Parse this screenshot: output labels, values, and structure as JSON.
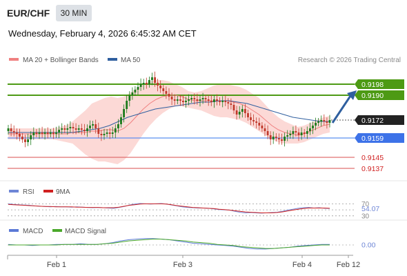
{
  "header": {
    "pair": "EUR/CHF",
    "timeframe": "30 MIN",
    "datetime": "Wednesday, February 4, 2026 6:45:32 AM CET"
  },
  "legend": {
    "ma20_label": "MA 20 + Bollinger Bands",
    "ma50_label": "MA 50",
    "ma20_color": "#f08080",
    "ma50_color": "#2f5f9f",
    "copyright": "Research © 2026 Trading Central"
  },
  "colors": {
    "up_candle": "#1a7a1a",
    "down_candle": "#c0392b",
    "bollinger_fill": "#fcd9d6",
    "resistance_line": "#4d9a14",
    "pivot_line": "#5b8ff0",
    "support_line": "#e07070",
    "arrow": "#2f5f9f",
    "rsi_line": "#6e86d6",
    "rsi_ma_line": "#d02020",
    "macd_line": "#5b79d6",
    "macd_signal_line": "#4aa82a"
  },
  "chart_data": [
    {
      "type": "candlestick",
      "title": "EUR/CHF",
      "x_ticks": [
        "Feb 1",
        "Feb 3",
        "Feb 4",
        "Feb 12"
      ],
      "ylim": [
        0.913,
        0.921
      ],
      "levels": [
        {
          "value": 0.9198,
          "label": "0.9198",
          "kind": "resistance"
        },
        {
          "value": 0.919,
          "label": "0.9190",
          "kind": "resistance"
        },
        {
          "value": 0.9172,
          "label": "0.9172",
          "kind": "last"
        },
        {
          "value": 0.9159,
          "label": "0.9159",
          "kind": "pivot"
        },
        {
          "value": 0.9145,
          "label": "0.9145",
          "kind": "support"
        },
        {
          "value": 0.9137,
          "label": "0.9137",
          "kind": "support"
        }
      ],
      "close_series": [
        0.9166,
        0.9164,
        0.9163,
        0.9162,
        0.916,
        0.9158,
        0.9156,
        0.9158,
        0.9161,
        0.9163,
        0.9162,
        0.9163,
        0.9162,
        0.9163,
        0.9162,
        0.9163,
        0.9162,
        0.9163,
        0.9165,
        0.9166,
        0.9165,
        0.9166,
        0.9167,
        0.9166,
        0.9165,
        0.9166,
        0.9165,
        0.9164,
        0.9166,
        0.9168,
        0.9169,
        0.9166,
        0.9162,
        0.9161,
        0.9162,
        0.9163,
        0.9162,
        0.9163,
        0.9166,
        0.9169,
        0.9174,
        0.918,
        0.9186,
        0.919,
        0.9192,
        0.9194,
        0.9196,
        0.9198,
        0.9199,
        0.9198,
        0.9201,
        0.9203,
        0.9199,
        0.9197,
        0.9195,
        0.9193,
        0.9191,
        0.9189,
        0.9187,
        0.9186,
        0.9187,
        0.9186,
        0.9185,
        0.9186,
        0.9187,
        0.9188,
        0.9187,
        0.9186,
        0.9187,
        0.9188,
        0.9187,
        0.9186,
        0.9185,
        0.9187,
        0.9186,
        0.9185,
        0.9186,
        0.9185,
        0.9184,
        0.9183,
        0.9179,
        0.9176,
        0.9178,
        0.918,
        0.9177,
        0.9174,
        0.9172,
        0.9171,
        0.917,
        0.9168,
        0.9166,
        0.9164,
        0.9161,
        0.9158,
        0.916,
        0.9159,
        0.9158,
        0.9157,
        0.916,
        0.9161,
        0.9162,
        0.9164,
        0.9163,
        0.9161,
        0.9163,
        0.9162,
        0.9164,
        0.9166,
        0.9168,
        0.917,
        0.9171,
        0.9172,
        0.9171,
        0.917,
        0.9172
      ],
      "ma20": [
        0.9162,
        0.9162,
        0.9162,
        0.9162,
        0.9162,
        0.9162,
        0.9162,
        0.9162,
        0.9162,
        0.9162,
        0.9163,
        0.9163,
        0.9163,
        0.9164,
        0.9164,
        0.9165,
        0.9165,
        0.9164,
        0.9166,
        0.917,
        0.9175,
        0.918,
        0.9184,
        0.9187,
        0.9189,
        0.919,
        0.919,
        0.9189,
        0.9187,
        0.9186,
        0.9186,
        0.9186,
        0.9186,
        0.9186,
        0.9186,
        0.9185,
        0.9184,
        0.9182,
        0.9179,
        0.9176,
        0.9172,
        0.9168,
        0.9165,
        0.9163,
        0.9162,
        0.9161,
        0.9162,
        0.9164,
        0.9166,
        0.9168,
        0.9169
      ],
      "ma50": [
        0.9163,
        0.9163,
        0.9163,
        0.9163,
        0.9163,
        0.9163,
        0.9163,
        0.9163,
        0.9164,
        0.9165,
        0.9166,
        0.9168,
        0.9171,
        0.9174,
        0.9176,
        0.9178,
        0.918,
        0.9181,
        0.9182,
        0.9183,
        0.9184,
        0.9185,
        0.9185,
        0.9186,
        0.9186,
        0.9185,
        0.9184,
        0.9182,
        0.918,
        0.9178,
        0.9176,
        0.9174,
        0.9173,
        0.9172,
        0.9171,
        0.9171
      ],
      "arrow": {
        "direction": "up",
        "from": 0.917,
        "to": 0.919
      }
    },
    {
      "type": "line",
      "title": "RSI",
      "series": [
        {
          "name": "RSI",
          "values": [
            70,
            68,
            67,
            66,
            65,
            63,
            62,
            61,
            60,
            61,
            60,
            60,
            59,
            60,
            59,
            58,
            57,
            58,
            57,
            56,
            55,
            58,
            61,
            66,
            69,
            71,
            70,
            69,
            70,
            71,
            69,
            66,
            63,
            60,
            58,
            57,
            56,
            56,
            55,
            53,
            51,
            50,
            49,
            45,
            42,
            40,
            41,
            40,
            39,
            40,
            41,
            42,
            45,
            49,
            52,
            55,
            57,
            58,
            56,
            57,
            55,
            54
          ]
        },
        {
          "name": "9MA",
          "values": [
            68,
            67,
            66,
            65,
            64,
            63,
            62,
            61,
            61,
            60,
            60,
            60,
            60,
            59,
            59,
            58,
            58,
            58,
            57,
            57,
            57,
            59,
            62,
            65,
            67,
            69,
            70,
            70,
            70,
            70,
            69,
            67,
            64,
            62,
            60,
            58,
            57,
            56,
            55,
            54,
            52,
            51,
            49,
            47,
            45,
            43,
            42,
            41,
            40,
            40,
            40,
            41,
            43,
            46,
            49,
            52,
            54,
            56,
            56,
            56,
            56,
            55
          ]
        }
      ],
      "ticks": [
        70,
        30
      ],
      "last_value": "54.07"
    },
    {
      "type": "line",
      "title": "MACD",
      "series": [
        {
          "name": "MACD",
          "values": [
            0.0001,
            0.0,
            0.0,
            -0.0001,
            0.0,
            0.0,
            0.0001,
            0.0001,
            0.0001,
            0.0002,
            0.0001,
            0.0001,
            0.0002,
            0.0004,
            0.0007,
            0.0009,
            0.001,
            0.0011,
            0.0011,
            0.001,
            0.0009,
            0.0007,
            0.0005,
            0.0003,
            0.0002,
            0.0001,
            0.0,
            -0.0001,
            -0.0002,
            -0.0004,
            -0.0006,
            -0.0007,
            -0.0007,
            -0.0006,
            -0.0005,
            -0.0004,
            -0.0002,
            -0.0001,
            0.0,
            0.0001,
            0.0001
          ]
        },
        {
          "name": "MACD Signal",
          "values": [
            0.0,
            0.0,
            0.0,
            0.0,
            0.0,
            0.0,
            0.0,
            0.0001,
            0.0001,
            0.0001,
            0.0001,
            0.0001,
            0.0002,
            0.0003,
            0.0005,
            0.0007,
            0.0008,
            0.0009,
            0.001,
            0.001,
            0.0009,
            0.0008,
            0.0007,
            0.0005,
            0.0004,
            0.0003,
            0.0001,
            0.0,
            -0.0001,
            -0.0003,
            -0.0004,
            -0.0005,
            -0.0006,
            -0.0006,
            -0.0005,
            -0.0004,
            -0.0003,
            -0.0002,
            -0.0001,
            0.0,
            0.0
          ]
        }
      ],
      "last_value": "0.00"
    }
  ]
}
